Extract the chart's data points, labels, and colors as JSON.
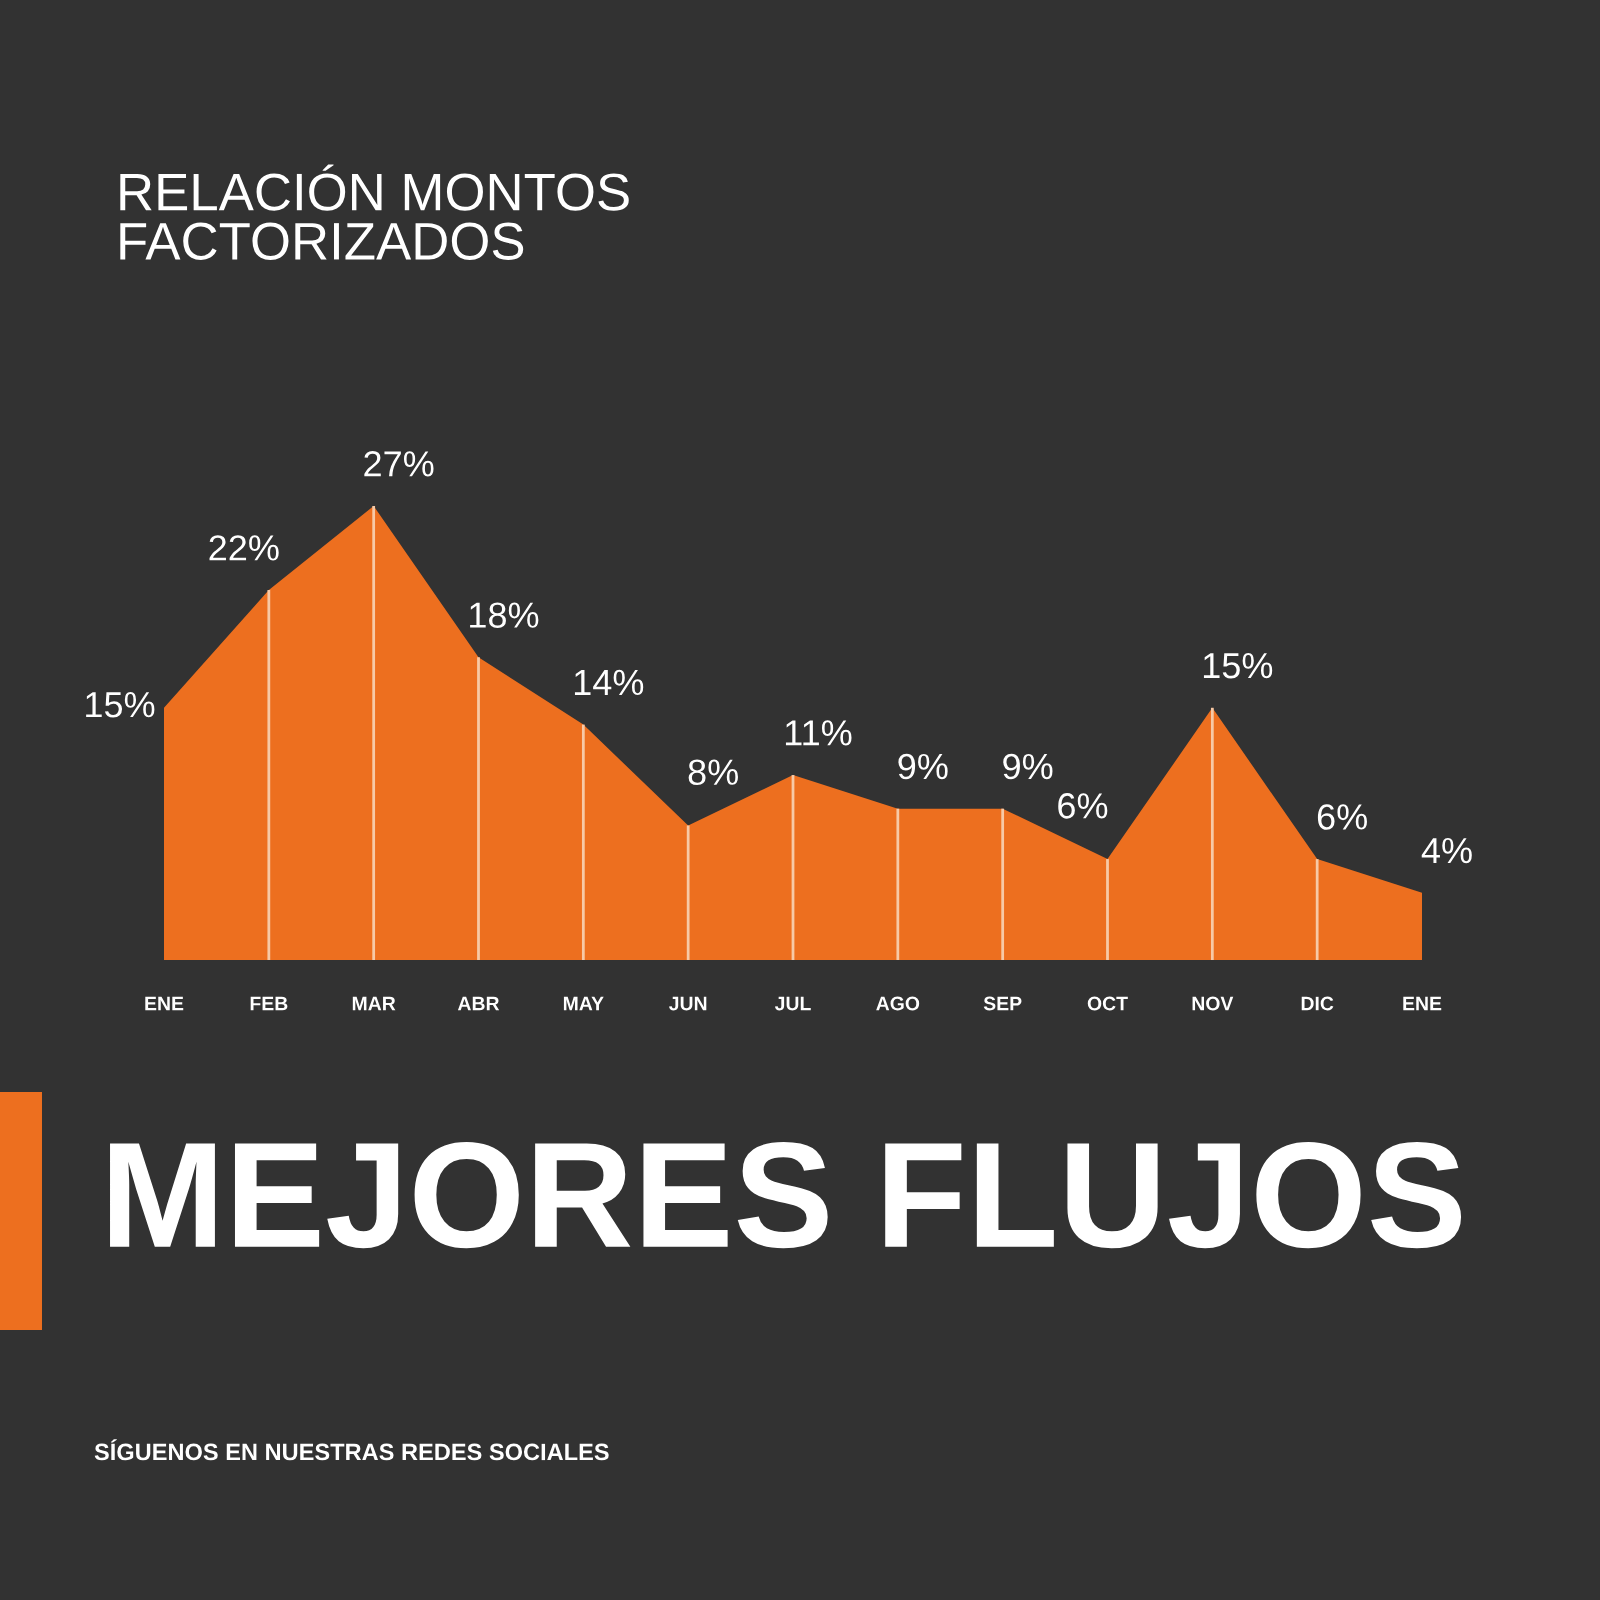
{
  "chart_data": {
    "type": "area",
    "title": "RELACIÓN MONTOS\nFACTORIZADOS",
    "subtitle": "MEJORES FLUJOS",
    "annotations": [
      "SÍGUENOS EN NUESTRAS REDES SOCIALES"
    ],
    "categories": [
      "ENE",
      "FEB",
      "MAR",
      "ABR",
      "MAY",
      "JUN",
      "JUL",
      "AGO",
      "SEP",
      "OCT",
      "NOV",
      "DIC",
      "ENE"
    ],
    "values": [
      15,
      22,
      27,
      18,
      14,
      8,
      11,
      9,
      9,
      6,
      15,
      6,
      4
    ],
    "value_labels": [
      "15%",
      "22%",
      "27%",
      "18%",
      "14%",
      "8%",
      "11%",
      "9%",
      "9%",
      "6%",
      "15%",
      "6%",
      "4%"
    ],
    "color": "#ed6f1f"
  }
}
